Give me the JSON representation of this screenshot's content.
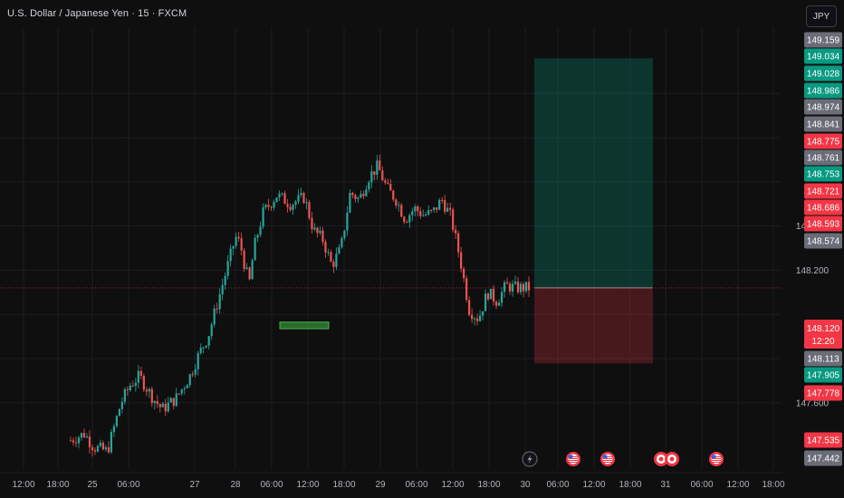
{
  "header": {
    "symbol_title": "U.S. Dollar / Japanese Yen · 15 · FXCM",
    "currency_button": "JPY"
  },
  "colors": {
    "background": "#0f0f0f",
    "up": "#26a69a",
    "down": "#ef5350",
    "grid": "#1c1e25",
    "gray_tag": "#6a6d78",
    "red_tag": "#f23645",
    "green_tag": "#089981"
  },
  "chart_data": {
    "type": "candlestick",
    "title": "",
    "ylim": [
      147.44,
      149.16
    ],
    "y_ticks": [
      "148.400",
      "148.200",
      "147.600"
    ],
    "x_ticks": [
      "12:00",
      "18:00",
      "25",
      "06:00",
      "27",
      "28",
      "06:00",
      "12:00",
      "18:00",
      "29",
      "06:00",
      "12:00",
      "18:00",
      "30",
      "06:00",
      "12:00",
      "18:00",
      "31",
      "06:00",
      "12:00",
      "18:00"
    ],
    "last_price": "148.120",
    "countdown": "12:20",
    "price_tags": [
      {
        "value": "149.159",
        "color": "gray"
      },
      {
        "value": "149.034",
        "color": "green"
      },
      {
        "value": "149.028",
        "color": "green"
      },
      {
        "value": "148.986",
        "color": "green"
      },
      {
        "value": "148.974",
        "color": "gray"
      },
      {
        "value": "148.841",
        "color": "gray"
      },
      {
        "value": "148.775",
        "color": "red"
      },
      {
        "value": "148.761",
        "color": "gray"
      },
      {
        "value": "148.753",
        "color": "green"
      },
      {
        "value": "148.721",
        "color": "red"
      },
      {
        "value": "148.686",
        "color": "red"
      },
      {
        "value": "148.593",
        "color": "red"
      },
      {
        "value": "148.574",
        "color": "gray"
      },
      {
        "value": "148.113",
        "color": "gray"
      },
      {
        "value": "147.905",
        "color": "green"
      },
      {
        "value": "147.778",
        "color": "red"
      },
      {
        "value": "147.535",
        "color": "red"
      },
      {
        "value": "147.442",
        "color": "gray"
      }
    ],
    "position": {
      "entry": 148.12,
      "target": 149.159,
      "stop": 147.778
    },
    "price_path": [
      [
        0,
        147.43
      ],
      [
        0.03,
        147.46
      ],
      [
        0.05,
        147.4
      ],
      [
        0.08,
        147.38
      ],
      [
        0.11,
        147.6
      ],
      [
        0.13,
        147.68
      ],
      [
        0.15,
        147.72
      ],
      [
        0.18,
        147.62
      ],
      [
        0.2,
        147.57
      ],
      [
        0.23,
        147.62
      ],
      [
        0.26,
        147.72
      ],
      [
        0.28,
        147.82
      ],
      [
        0.3,
        147.9
      ],
      [
        0.32,
        148.05
      ],
      [
        0.34,
        148.2
      ],
      [
        0.36,
        148.35
      ],
      [
        0.37,
        148.32
      ],
      [
        0.38,
        148.22
      ],
      [
        0.39,
        148.14
      ],
      [
        0.4,
        148.3
      ],
      [
        0.42,
        148.46
      ],
      [
        0.45,
        148.54
      ],
      [
        0.48,
        148.5
      ],
      [
        0.51,
        148.53
      ],
      [
        0.53,
        148.38
      ],
      [
        0.55,
        148.34
      ],
      [
        0.57,
        148.22
      ],
      [
        0.59,
        148.3
      ],
      [
        0.61,
        148.55
      ],
      [
        0.63,
        148.52
      ],
      [
        0.65,
        148.62
      ],
      [
        0.67,
        148.67
      ],
      [
        0.69,
        148.57
      ],
      [
        0.71,
        148.52
      ],
      [
        0.73,
        148.43
      ],
      [
        0.75,
        148.48
      ],
      [
        0.77,
        148.45
      ],
      [
        0.79,
        148.46
      ],
      [
        0.81,
        148.52
      ],
      [
        0.83,
        148.44
      ],
      [
        0.85,
        148.25
      ],
      [
        0.87,
        148.02
      ],
      [
        0.89,
        147.98
      ],
      [
        0.91,
        148.1
      ],
      [
        0.93,
        148.06
      ],
      [
        0.95,
        148.13
      ],
      [
        0.97,
        148.12
      ],
      [
        1.0,
        148.12
      ]
    ],
    "annotation_box": {
      "price": 147.95,
      "range": [
        147.935,
        147.965
      ]
    },
    "event_markers": [
      {
        "icon": "lightning-event-icon"
      },
      {
        "icon": "us-flag-event-icon"
      },
      {
        "icon": "us-flag-event-icon"
      },
      {
        "icon": "jp-flag-event-icon"
      },
      {
        "icon": "jp-flag-event-icon"
      },
      {
        "icon": "us-flag-event-icon"
      }
    ]
  }
}
